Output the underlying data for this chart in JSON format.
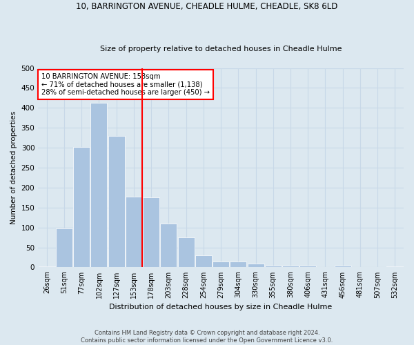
{
  "title1": "10, BARRINGTON AVENUE, CHEADLE HULME, CHEADLE, SK8 6LD",
  "title2": "Size of property relative to detached houses in Cheadle Hulme",
  "xlabel": "Distribution of detached houses by size in Cheadle Hulme",
  "ylabel": "Number of detached properties",
  "footer1": "Contains HM Land Registry data © Crown copyright and database right 2024.",
  "footer2": "Contains public sector information licensed under the Open Government Licence v3.0.",
  "categories": [
    "26sqm",
    "51sqm",
    "77sqm",
    "102sqm",
    "127sqm",
    "153sqm",
    "178sqm",
    "203sqm",
    "228sqm",
    "254sqm",
    "279sqm",
    "304sqm",
    "330sqm",
    "355sqm",
    "380sqm",
    "406sqm",
    "431sqm",
    "456sqm",
    "481sqm",
    "507sqm",
    "532sqm"
  ],
  "values": [
    2,
    98,
    301,
    413,
    330,
    178,
    175,
    110,
    76,
    30,
    15,
    15,
    10,
    4,
    4,
    4,
    1,
    5,
    1,
    1,
    2
  ],
  "bar_color": "#aac4e0",
  "bar_edge_color": "#ffffff",
  "grid_color": "#c8d8e8",
  "background_color": "#dce8f0",
  "vline_color": "red",
  "annotation_title": "10 BARRINGTON AVENUE: 153sqm",
  "annotation_line1": "← 71% of detached houses are smaller (1,138)",
  "annotation_line2": "28% of semi-detached houses are larger (450) →",
  "annotation_box_color": "white",
  "annotation_box_edge": "red",
  "ylim": [
    0,
    500
  ],
  "yticks": [
    0,
    50,
    100,
    150,
    200,
    250,
    300,
    350,
    400,
    450,
    500
  ]
}
